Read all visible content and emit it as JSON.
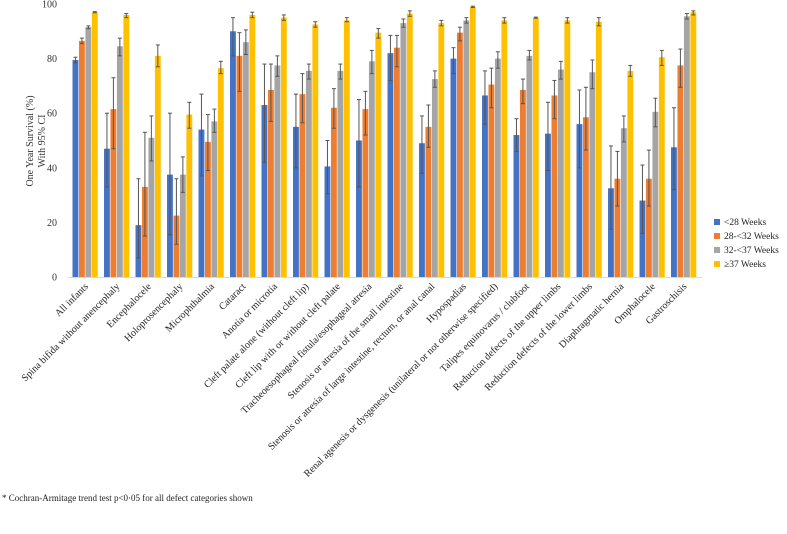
{
  "chart_data": {
    "type": "bar",
    "title": "",
    "xlabel": "",
    "ylabel": "One Year Survival (%) With 95% CI",
    "ylabel_lines": [
      "One Year Survival (%)",
      "With 95% CI"
    ],
    "ylim": [
      0,
      100
    ],
    "yticks": [
      0,
      20,
      40,
      60,
      80,
      100
    ],
    "grid": false,
    "legend_position": "right",
    "categories": [
      "All infants",
      "Spina bifida without anencephaly",
      "Encephalocele",
      "Holoprosencephaly",
      "Microphthalmia",
      "Cataract",
      "Anotia or microtia",
      "Cleft palate alone (without cleft lip)",
      "Cleft lip with or without cleft palate",
      "Tracheoesophageal fistula/esophageal atresia",
      "Stenosis or atresia of the small intestine",
      "Stenosis or atresia of large intestine, rectum, or anal canal",
      "Hypospadias",
      "Renal agenesis or dysgenesis (unilateral or not otherwise specified)",
      "Talipes equinovarus / clubfoot",
      "Reduction defects of the upper limbs",
      "Reduction defects of the lower limbs",
      "Diaphragmatic hernia",
      "Omphalocele",
      "Gastroschisis"
    ],
    "series": [
      {
        "name": "<28 Weeks",
        "color": "#4472c4",
        "values": [
          79.5,
          47,
          19,
          37.5,
          54,
          90,
          63,
          55,
          40.5,
          50,
          82,
          49,
          80,
          66.5,
          52,
          52.5,
          56,
          32.5,
          28,
          47.5
        ],
        "ci_low": [
          78.5,
          33,
          7,
          15.5,
          37,
          81,
          42,
          40,
          30.5,
          33,
          72,
          38,
          74.5,
          56,
          46,
          39,
          40,
          17.5,
          16,
          32
        ],
        "ci_high": [
          80.5,
          60,
          36,
          60,
          67,
          95,
          78,
          67,
          50,
          65,
          88.5,
          59,
          84,
          75.5,
          58,
          64,
          68.5,
          48,
          41,
          62
        ]
      },
      {
        "name": "28-<32 Weeks",
        "color": "#ed7d31",
        "values": [
          86.5,
          61.5,
          33,
          22.5,
          49.5,
          81,
          68.5,
          67,
          62,
          61.5,
          84,
          55,
          89.5,
          70.5,
          68.5,
          66.5,
          58.5,
          36,
          36,
          77.5
        ],
        "ci_low": [
          85.5,
          47,
          15,
          12,
          39,
          68,
          57,
          56.5,
          54.5,
          52,
          77,
          47.5,
          86.5,
          62,
          63.5,
          58,
          46.5,
          26,
          26,
          69.5
        ],
        "ci_high": [
          87.5,
          73,
          53,
          36,
          59.5,
          89.5,
          78,
          74.5,
          69,
          68,
          88.5,
          63,
          91.5,
          76.5,
          72.5,
          72,
          69.5,
          46,
          46.5,
          83.5
        ]
      },
      {
        "name": "32-<37 Weeks",
        "color": "#a5a5a5",
        "values": [
          91.5,
          84.5,
          51,
          37.5,
          57,
          86,
          77.5,
          75.5,
          75.5,
          79,
          93,
          72.5,
          94,
          80,
          81,
          76,
          75,
          54.5,
          60.5,
          95.5
        ],
        "ci_low": [
          91,
          81,
          42.5,
          31,
          53,
          81.5,
          73.5,
          72.5,
          72.5,
          74.5,
          91.5,
          69.5,
          93,
          76.5,
          79.5,
          72.5,
          69,
          49.5,
          55,
          94.5
        ],
        "ci_high": [
          92,
          87.5,
          59,
          44,
          61.5,
          90.5,
          81,
          78,
          78,
          83,
          94.5,
          75.5,
          95,
          82.5,
          83,
          79,
          79.5,
          59,
          65.5,
          96.5
        ]
      },
      {
        "name": "≥37 Weeks",
        "color": "#ffc000",
        "values": [
          97,
          96,
          81,
          59.5,
          76.5,
          96,
          95,
          92.5,
          94,
          89.5,
          96.5,
          93,
          99,
          94,
          95,
          94,
          93.5,
          75.5,
          80.5,
          97
        ],
        "ci_low": [
          96.8,
          95,
          77,
          54.5,
          74.5,
          95,
          94,
          91.5,
          93.5,
          87.5,
          95.5,
          92,
          98.7,
          93,
          94.8,
          93,
          92,
          73.5,
          77.5,
          96
        ],
        "ci_high": [
          97.2,
          96.5,
          85,
          64,
          79,
          97,
          96,
          93.5,
          95,
          91,
          97.5,
          94,
          99.2,
          95,
          95.2,
          95,
          95,
          77.5,
          83,
          97.5
        ]
      }
    ],
    "footnote": "* Cochran-Armitage trend test p<0·05 for all defect categories shown"
  }
}
